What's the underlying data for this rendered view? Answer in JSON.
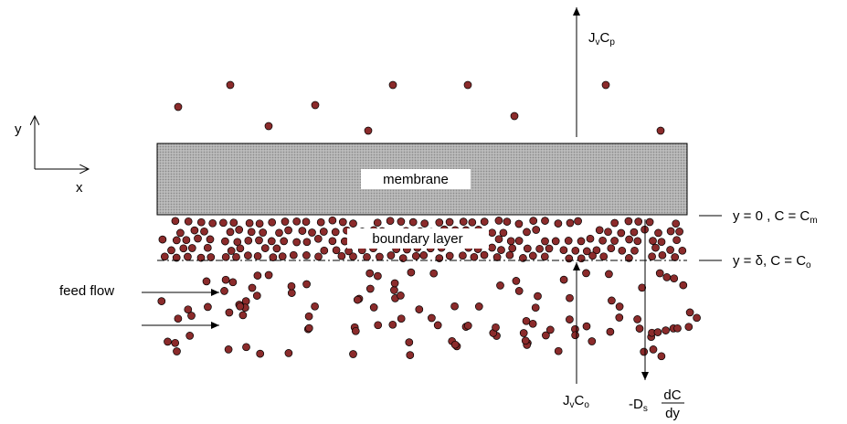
{
  "axes": {
    "y": "y",
    "x": "x"
  },
  "membrane": {
    "label": "membrane"
  },
  "boundary_layer": {
    "label": "boundary layer"
  },
  "feed": {
    "label": "feed flow"
  },
  "flux_permeate": {
    "base1": "J",
    "sub1": "v",
    "base2": "C",
    "sub2": "p"
  },
  "flux_feed": {
    "base1": "J",
    "sub1": "v",
    "base2": "C",
    "sub2": "o"
  },
  "back_diffusion": {
    "prefix": "-D",
    "sub": "s",
    "numerator": "dC",
    "denominator": "dy"
  },
  "conditions": [
    {
      "text": "y = 0 , C = C",
      "sub": "m"
    },
    {
      "text": "y = δ, C = C",
      "sub": "o"
    }
  ]
}
